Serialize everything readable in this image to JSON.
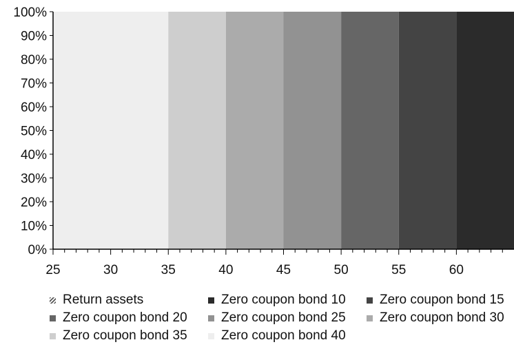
{
  "chart_data": {
    "type": "area",
    "stacked_percent": true,
    "x_ticks": [
      25,
      30,
      35,
      40,
      45,
      50,
      55,
      60
    ],
    "xlim": [
      25,
      65
    ],
    "y_ticks": [
      "0%",
      "10%",
      "20%",
      "30%",
      "40%",
      "50%",
      "60%",
      "70%",
      "80%",
      "90%",
      "100%"
    ],
    "ylim": [
      0,
      100
    ],
    "grid": false,
    "legend_position": "bottom",
    "series": [
      {
        "name": "Return assets",
        "color": "#ffffff",
        "hatch": true,
        "x": [
          25,
          65
        ],
        "values": [
          0,
          0
        ]
      },
      {
        "name": "Zero coupon bond 10",
        "color": "#2b2b2b",
        "x": [
          25,
          60,
          60,
          65
        ],
        "values": [
          0,
          0,
          100,
          100
        ]
      },
      {
        "name": "Zero coupon bond 15",
        "color": "#444444",
        "x": [
          25,
          55,
          55,
          60,
          60,
          65
        ],
        "values": [
          0,
          0,
          100,
          100,
          0,
          0
        ]
      },
      {
        "name": "Zero coupon bond 20",
        "color": "#666666",
        "x": [
          25,
          50,
          50,
          55,
          55,
          65
        ],
        "values": [
          0,
          0,
          100,
          100,
          0,
          0
        ]
      },
      {
        "name": "Zero coupon bond 25",
        "color": "#929292",
        "x": [
          25,
          45,
          45,
          50,
          50,
          65
        ],
        "values": [
          0,
          0,
          100,
          100,
          0,
          0
        ]
      },
      {
        "name": "Zero coupon bond 30",
        "color": "#ababab",
        "x": [
          25,
          40,
          40,
          45,
          45,
          65
        ],
        "values": [
          0,
          0,
          100,
          100,
          0,
          0
        ]
      },
      {
        "name": "Zero coupon bond 35",
        "color": "#cecece",
        "x": [
          25,
          35,
          35,
          40,
          40,
          65
        ],
        "values": [
          0,
          0,
          100,
          100,
          0,
          0
        ]
      },
      {
        "name": "Zero coupon bond 40",
        "color": "#eeeeee",
        "x": [
          25,
          35,
          35,
          65
        ],
        "values": [
          100,
          100,
          0,
          0
        ]
      }
    ]
  }
}
